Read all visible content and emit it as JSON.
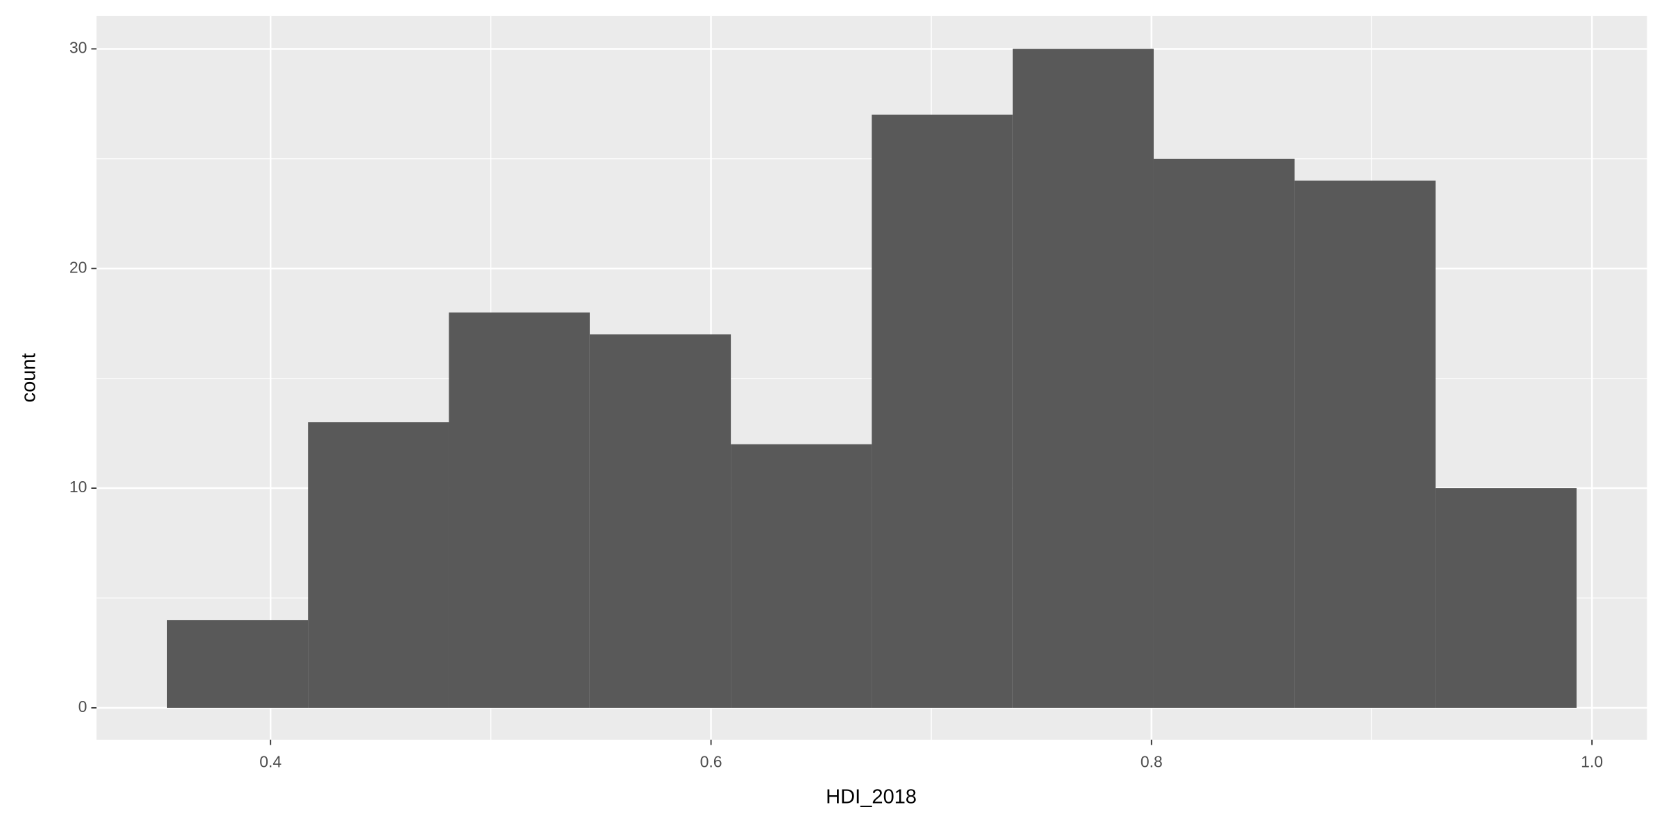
{
  "chart_data": {
    "type": "histogram",
    "x_label": "HDI_2018",
    "y_label": "count",
    "bins": [
      0.353,
      0.417,
      0.481,
      0.545,
      0.609,
      0.673,
      0.737,
      0.801,
      0.865,
      0.929,
      0.993
    ],
    "values": [
      4,
      13,
      18,
      17,
      12,
      27,
      30,
      25,
      24,
      10
    ],
    "color": "#595959",
    "panel_color": "#ebebeb",
    "xlim": [
      0.321,
      1.025
    ],
    "ylim": [
      -1.45,
      31.5
    ],
    "xticks": [
      {
        "value": 0.4,
        "label": "0.4"
      },
      {
        "value": 0.6,
        "label": "0.6"
      },
      {
        "value": 0.8,
        "label": "0.8"
      },
      {
        "value": 1.0,
        "label": "1.0"
      }
    ],
    "yticks": [
      0,
      10,
      20,
      30
    ],
    "grid": true
  }
}
